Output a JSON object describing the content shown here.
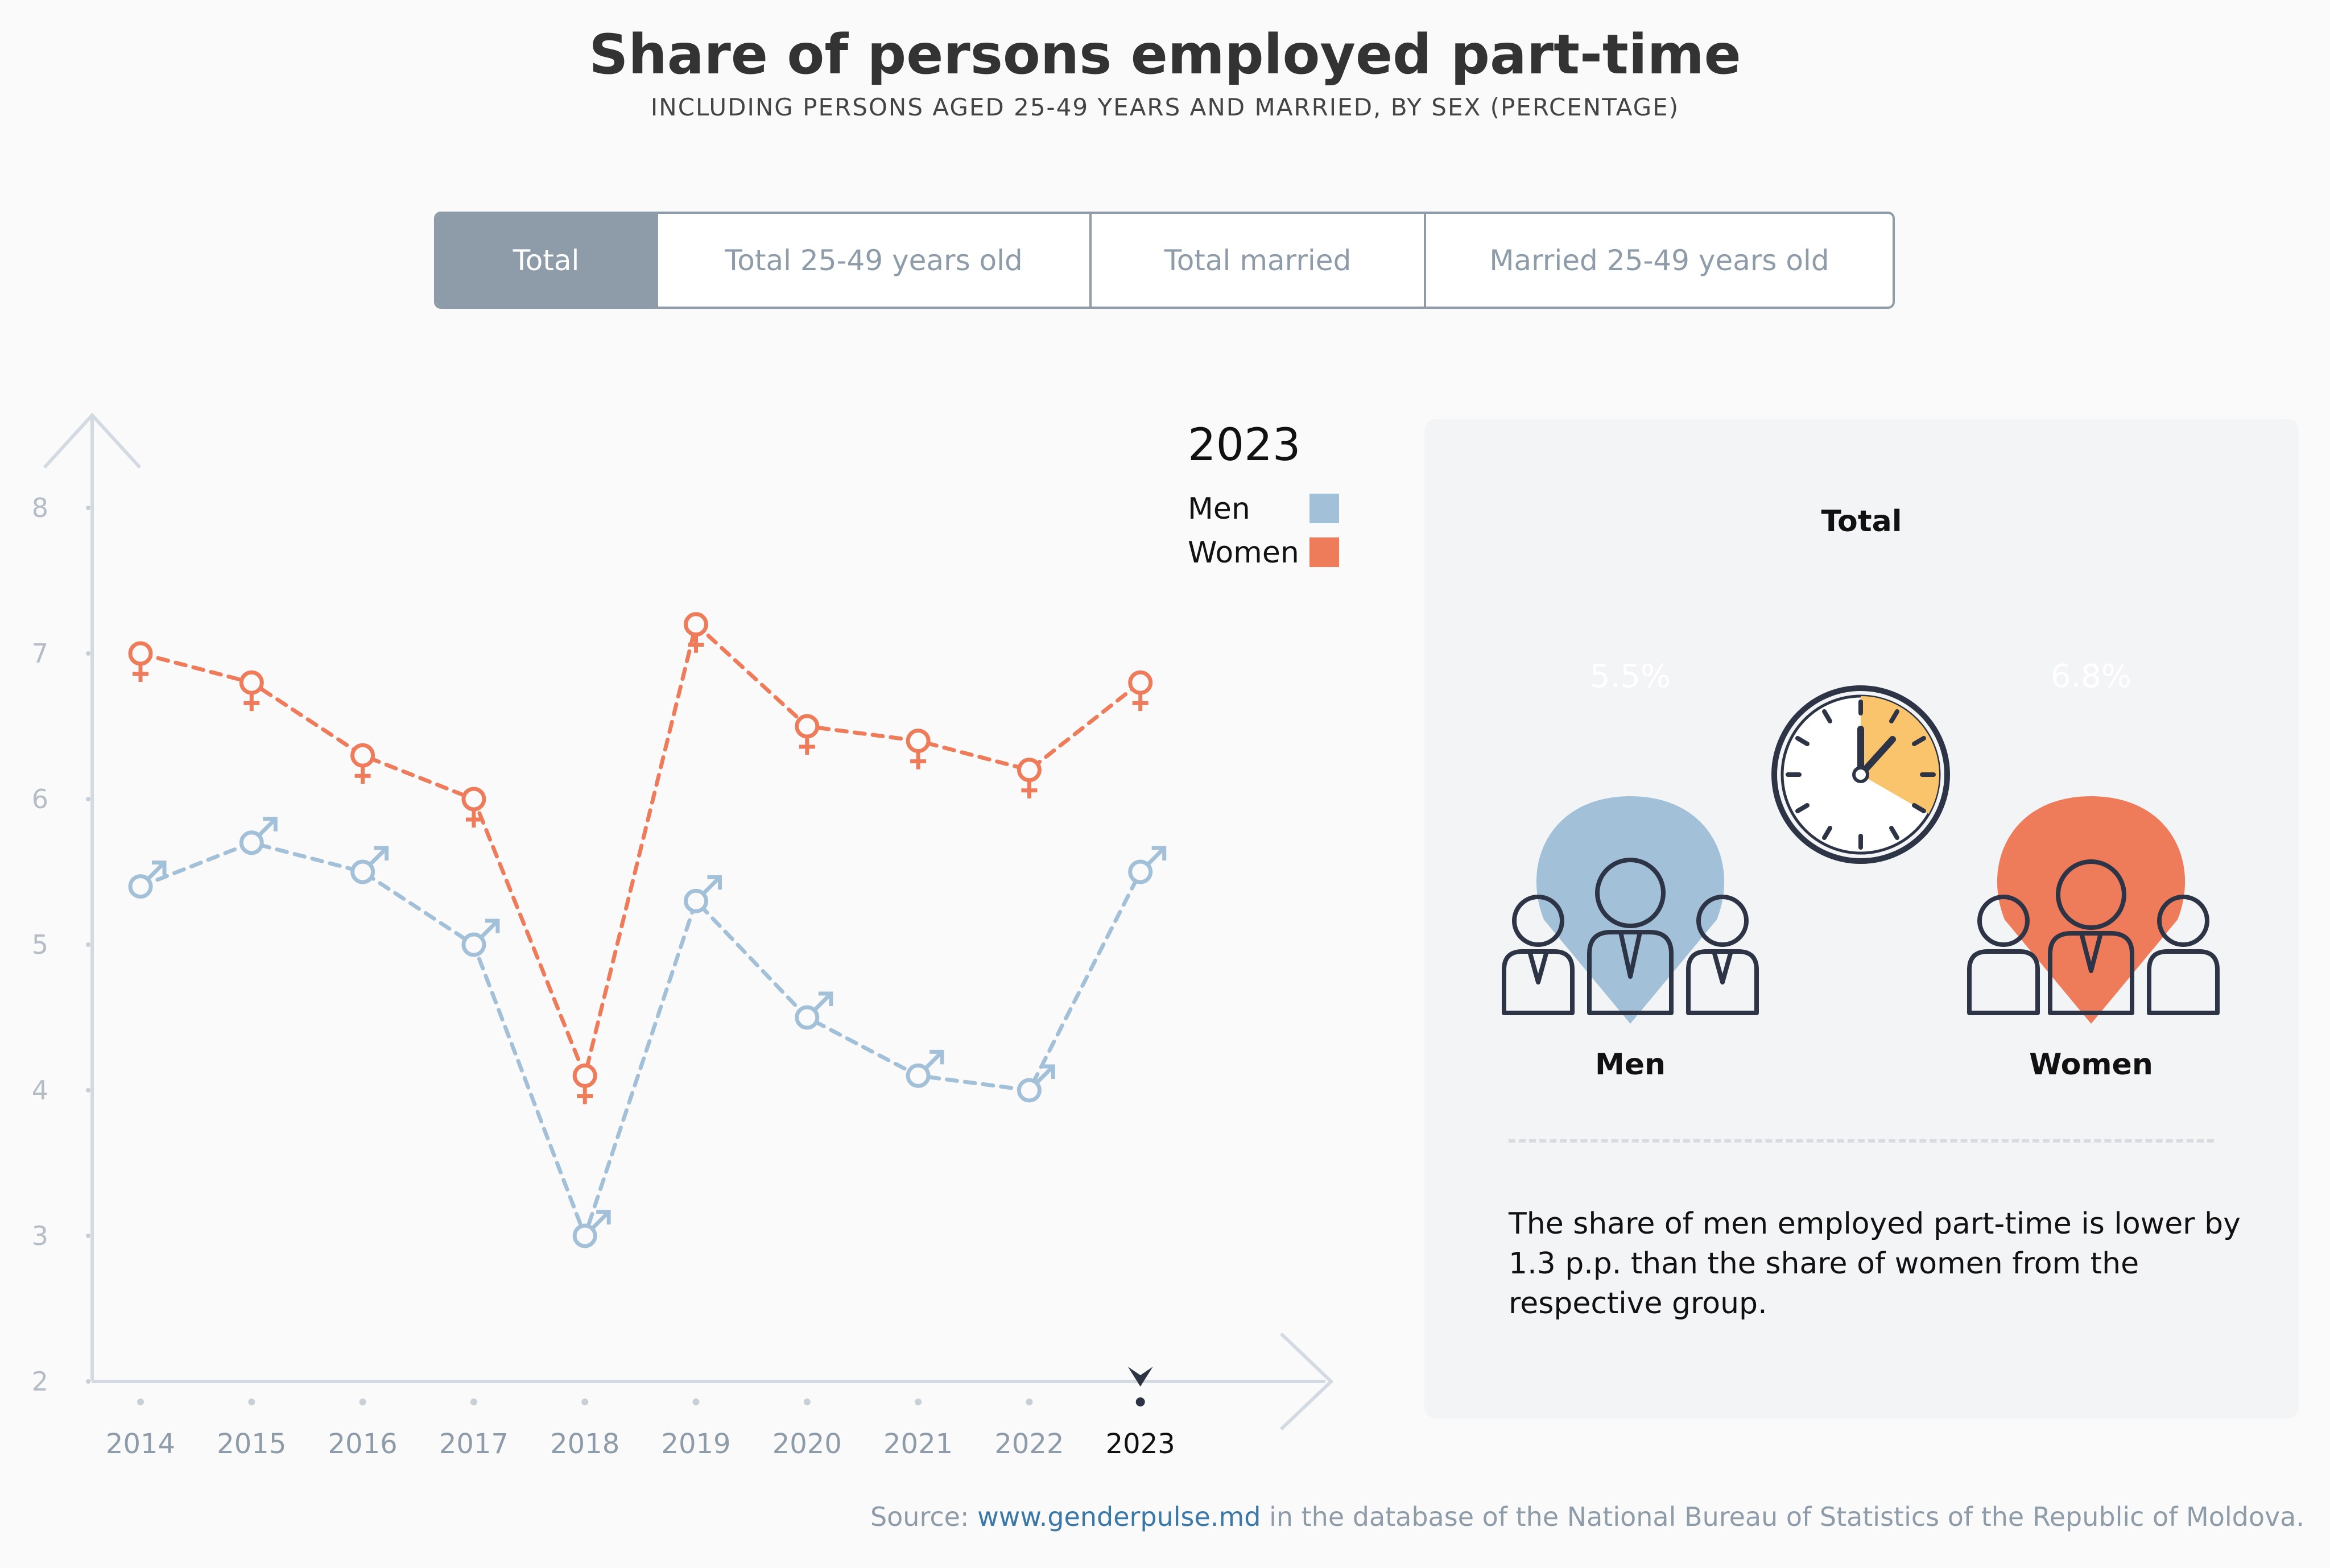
{
  "header": {
    "title": "Share of persons employed part-time",
    "subtitle": "INCLUDING PERSONS AGED 25-49 YEARS AND MARRIED, BY SEX (PERCENTAGE)"
  },
  "tabs": [
    {
      "label": "Total",
      "active": true
    },
    {
      "label": "Total 25-49 years old",
      "active": false
    },
    {
      "label": "Total married",
      "active": false
    },
    {
      "label": "Married 25-49 years old",
      "active": false
    }
  ],
  "legend": {
    "year": "2023",
    "men_label": "Men",
    "women_label": "Women"
  },
  "colors": {
    "men": "#a3c0d9",
    "women": "#ee7b5a",
    "axis": "#d3dae2",
    "clock_fill": "#f9c46b",
    "icon_stroke": "#2d3446"
  },
  "chart_data": {
    "type": "line",
    "x": [
      "2014",
      "2015",
      "2016",
      "2017",
      "2018",
      "2019",
      "2020",
      "2021",
      "2022",
      "2023"
    ],
    "yticks": [
      "2",
      "3",
      "4",
      "5",
      "6",
      "7",
      "8"
    ],
    "ylim": [
      2,
      8
    ],
    "selected": "2023",
    "series": [
      {
        "name": "Men",
        "values": [
          5.4,
          5.7,
          5.5,
          5.0,
          3.0,
          5.3,
          4.5,
          4.1,
          4.0,
          5.5
        ]
      },
      {
        "name": "Women",
        "values": [
          7.0,
          6.8,
          6.3,
          6.0,
          4.1,
          7.2,
          6.5,
          6.4,
          6.2,
          6.8
        ]
      }
    ]
  },
  "panel": {
    "title": "Total",
    "men_value": "5.5%",
    "women_value": "6.8%",
    "men_label": "Men",
    "women_label": "Women",
    "note": "The share of men employed part-time is lower by 1.3 p.p. than the share of women from the respective group."
  },
  "source": {
    "prefix": "Source: ",
    "link": "www.genderpulse.md",
    "suffix": " in the database of the National Bureau of Statistics of the Republic of Moldova."
  }
}
